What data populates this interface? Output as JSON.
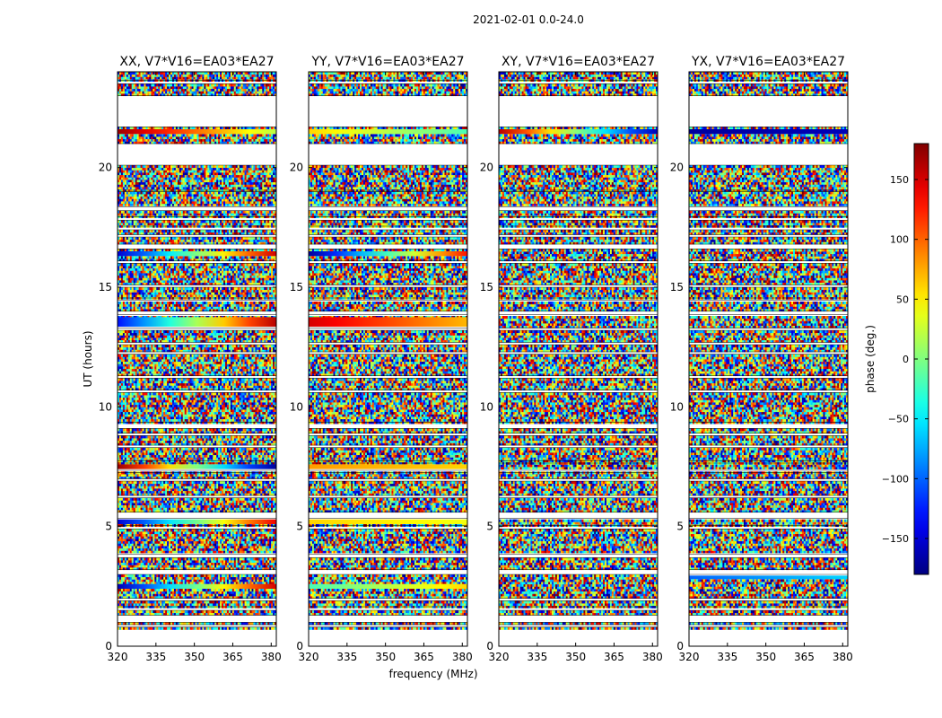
{
  "chart_data": {
    "type": "heatmap",
    "suptitle": "2021-02-01 0.0-24.0",
    "xlabel": "frequency (MHz)",
    "ylabel": "UT (hours)",
    "xlim": [
      320,
      382
    ],
    "ylim": [
      0,
      24
    ],
    "xticks": [
      320,
      335,
      350,
      365,
      380
    ],
    "yticks": [
      0,
      5,
      10,
      15,
      20
    ],
    "colorbar": {
      "label": "phase (deg.)",
      "range": [
        -180,
        180
      ],
      "ticks": [
        -150,
        -100,
        -50,
        0,
        50,
        100,
        150
      ],
      "tick_labels": [
        "−150",
        "−100",
        "−50",
        "0",
        "50",
        "100",
        "150"
      ],
      "colormap": "jet",
      "colors": [
        "#00007f",
        "#0000ff",
        "#007fff",
        "#00ffff",
        "#7fff7f",
        "#ffff00",
        "#ff7f00",
        "#ff0000",
        "#7f0000"
      ]
    },
    "panels": [
      {
        "title": "XX, V7*V16=EA03*EA27",
        "coherent_bands": [
          {
            "ut": [
              2.4,
              2.6
            ],
            "phase_start": -160,
            "phase_end": 150
          },
          {
            "ut": [
              5.1,
              5.3
            ],
            "phase_start": -150,
            "phase_end": 140
          },
          {
            "ut": [
              7.4,
              7.6
            ],
            "phase_start": 170,
            "phase_end": -170
          },
          {
            "ut": [
              13.35,
              13.75
            ],
            "phase_start": -130,
            "phase_end": 160
          },
          {
            "ut": [
              16.3,
              16.5
            ],
            "phase_start": -150,
            "phase_end": 150
          },
          {
            "ut": [
              21.4,
              21.6
            ],
            "phase_start": 170,
            "phase_end": 20
          }
        ]
      },
      {
        "title": "YY, V7*V16=EA03*EA27",
        "coherent_bands": [
          {
            "ut": [
              2.4,
              2.6
            ],
            "phase_start": -20,
            "phase_end": 60
          },
          {
            "ut": [
              5.1,
              5.3
            ],
            "phase_start": 60,
            "phase_end": 40
          },
          {
            "ut": [
              7.4,
              7.6
            ],
            "phase_start": 80,
            "phase_end": 60
          },
          {
            "ut": [
              13.35,
              13.75
            ],
            "phase_start": 150,
            "phase_end": 70
          },
          {
            "ut": [
              16.3,
              16.5
            ],
            "phase_start": -170,
            "phase_end": 130
          },
          {
            "ut": [
              21.4,
              21.6
            ],
            "phase_start": 60,
            "phase_end": -20
          }
        ]
      },
      {
        "title": "XY, V7*V16=EA03*EA27",
        "coherent_bands": [
          {
            "ut": [
              21.4,
              21.6
            ],
            "phase_start": 160,
            "phase_end": -160
          }
        ]
      },
      {
        "title": "YX, V7*V16=EA03*EA27",
        "coherent_bands": [
          {
            "ut": [
              2.8,
              2.95
            ],
            "phase_start": -100,
            "phase_end": -60
          },
          {
            "ut": [
              21.4,
              21.6
            ],
            "phase_start": -170,
            "phase_end": -160
          }
        ]
      }
    ],
    "data_gaps_ut": [
      [
        0.8,
        0.9
      ],
      [
        1.0,
        1.3
      ],
      [
        1.5,
        1.65
      ],
      [
        1.9,
        2.0
      ],
      [
        3.0,
        3.2
      ],
      [
        3.7,
        3.85
      ],
      [
        4.9,
        5.05
      ],
      [
        5.35,
        5.6
      ],
      [
        6.2,
        6.3
      ],
      [
        6.9,
        7.0
      ],
      [
        7.25,
        7.35
      ],
      [
        7.65,
        7.75
      ],
      [
        8.3,
        8.4
      ],
      [
        8.8,
        8.9
      ],
      [
        9.1,
        9.35
      ],
      [
        10.6,
        10.7
      ],
      [
        11.2,
        11.3
      ],
      [
        12.2,
        12.3
      ],
      [
        12.6,
        12.7
      ],
      [
        13.2,
        13.3
      ],
      [
        13.85,
        14.0
      ],
      [
        14.45,
        14.55
      ],
      [
        15.0,
        15.1
      ],
      [
        16.0,
        16.1
      ],
      [
        16.6,
        16.8
      ],
      [
        17.1,
        17.2
      ],
      [
        17.4,
        17.55
      ],
      [
        17.8,
        17.95
      ],
      [
        18.2,
        18.35
      ],
      [
        19.0,
        19.05
      ],
      [
        20.1,
        21.0
      ],
      [
        21.7,
        23.0
      ],
      [
        23.5,
        23.65
      ]
    ]
  }
}
